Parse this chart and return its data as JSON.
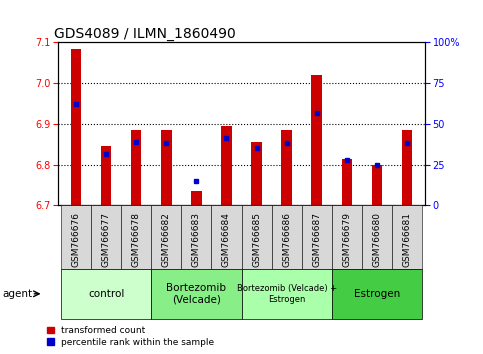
{
  "title": "GDS4089 / ILMN_1860490",
  "samples": [
    "GSM766676",
    "GSM766677",
    "GSM766678",
    "GSM766682",
    "GSM766683",
    "GSM766684",
    "GSM766685",
    "GSM766686",
    "GSM766687",
    "GSM766679",
    "GSM766680",
    "GSM766681"
  ],
  "red_values": [
    7.085,
    6.845,
    6.885,
    6.885,
    6.735,
    6.895,
    6.855,
    6.885,
    7.02,
    6.815,
    6.8,
    6.885
  ],
  "blue_values": [
    6.95,
    6.825,
    6.855,
    6.852,
    6.76,
    6.865,
    6.84,
    6.852,
    6.928,
    6.812,
    6.8,
    6.852
  ],
  "ylim_left": [
    6.7,
    7.1
  ],
  "yticks_left": [
    6.7,
    6.8,
    6.9,
    7.0,
    7.1
  ],
  "ylim_right": [
    0,
    100
  ],
  "yticks_right": [
    0,
    25,
    50,
    75,
    100
  ],
  "yticklabels_right": [
    "0",
    "25",
    "50",
    "75",
    "100%"
  ],
  "bar_width": 0.35,
  "bar_color": "#cc0000",
  "blue_color": "#0000cc",
  "groups": [
    {
      "label": "control",
      "start": 0,
      "end": 3,
      "color": "#ccffcc"
    },
    {
      "label": "Bortezomib\n(Velcade)",
      "start": 3,
      "end": 6,
      "color": "#88ee88"
    },
    {
      "label": "Bortezomib (Velcade) +\nEstrogen",
      "start": 6,
      "end": 9,
      "color": "#aaffaa"
    },
    {
      "label": "Estrogen",
      "start": 9,
      "end": 12,
      "color": "#44cc44"
    }
  ],
  "baseline": 6.7,
  "legend_red_label": "transformed count",
  "legend_blue_label": "percentile rank within the sample",
  "agent_label": "agent",
  "title_fontsize": 10,
  "tick_fontsize": 7,
  "group_fontsize": 7.5,
  "xtick_fontsize": 6.5
}
